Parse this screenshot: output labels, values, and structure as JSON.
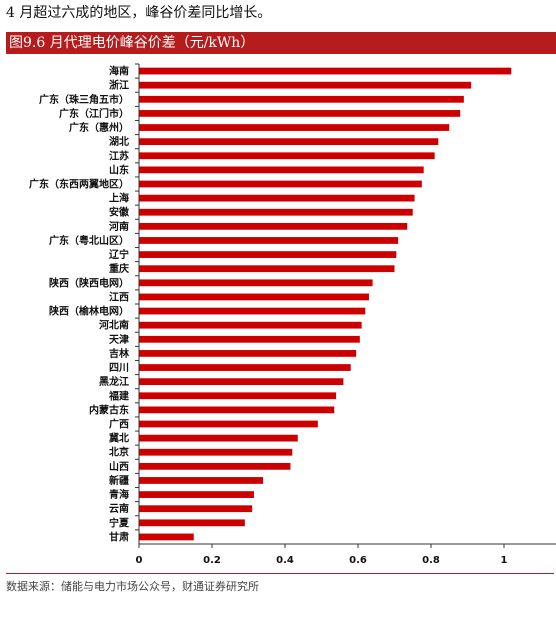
{
  "intro_text": "4 月超过六成的地区，峰谷价差同比增长。",
  "chart_data": {
    "type": "bar",
    "orientation": "horizontal",
    "title": "图9.6 月代理电价峰谷价差（元/kWh）",
    "bar_color": "#cc0000",
    "xlim": [
      0,
      1.15
    ],
    "xticks": [
      "0",
      "0.2",
      "0.4",
      "0.6",
      "0.8",
      "1"
    ],
    "xtick_values": [
      0,
      0.2,
      0.4,
      0.6,
      0.8,
      1
    ],
    "categories": [
      "海南",
      "浙江",
      "广东（珠三角五市）",
      "广东（江门市）",
      "广东（惠州）",
      "湖北",
      "江苏",
      "山东",
      "广东（东西两翼地区）",
      "上海",
      "安徽",
      "河南",
      "广东（粤北山区）",
      "辽宁",
      "重庆",
      "陕西（陕西电网）",
      "江西",
      "陕西（榆林电网）",
      "河北南",
      "天津",
      "吉林",
      "四川",
      "黑龙江",
      "福建",
      "内蒙古东",
      "广西",
      "冀北",
      "北京",
      "山西",
      "新疆",
      "青海",
      "云南",
      "宁夏",
      "甘肃"
    ],
    "values": [
      1.02,
      0.91,
      0.89,
      0.88,
      0.85,
      0.82,
      0.81,
      0.78,
      0.775,
      0.755,
      0.75,
      0.735,
      0.71,
      0.705,
      0.7,
      0.64,
      0.63,
      0.62,
      0.61,
      0.605,
      0.595,
      0.58,
      0.56,
      0.54,
      0.535,
      0.49,
      0.435,
      0.42,
      0.415,
      0.34,
      0.315,
      0.31,
      0.29,
      0.15
    ]
  },
  "source_text": "数据来源：储能与电力市场公众号，财通证券研究所"
}
